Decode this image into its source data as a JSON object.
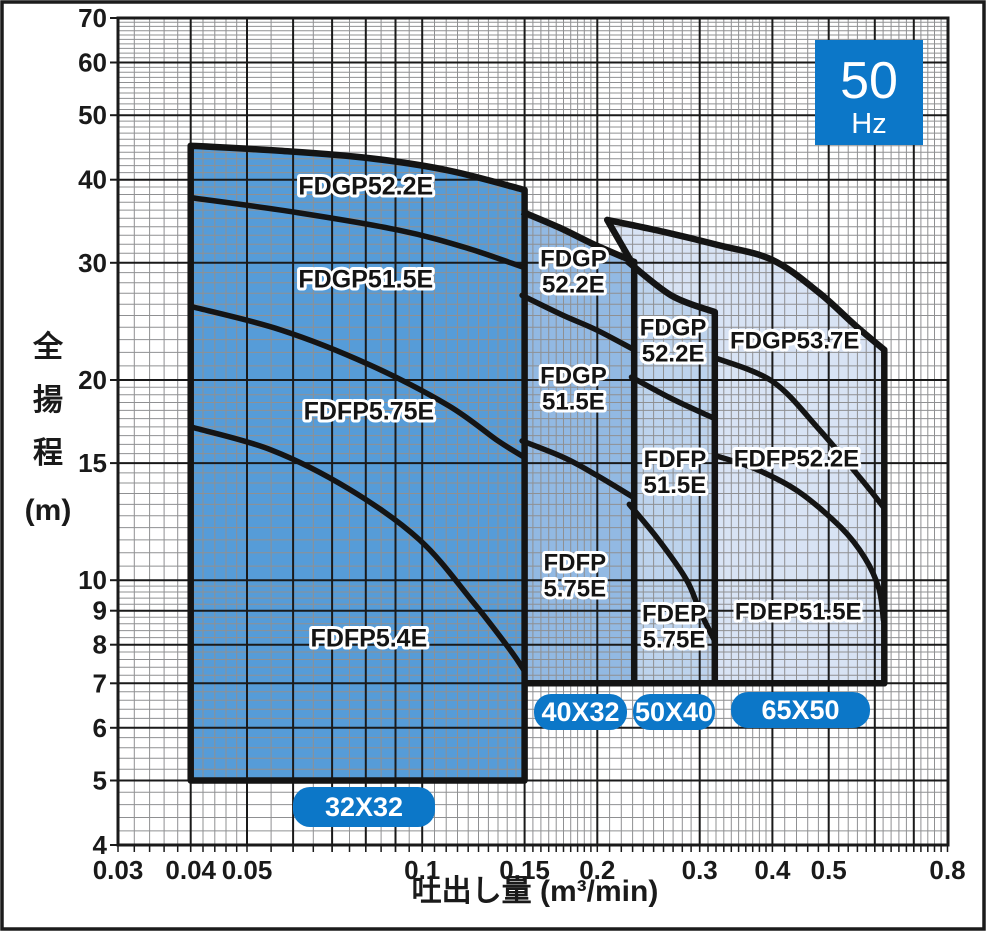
{
  "hz_badge": {
    "value": "50",
    "unit": "Hz",
    "bg": "#0C77C8",
    "text_color": "#ffffff"
  },
  "axes": {
    "x": {
      "label": "吐出し量 (m³/min)",
      "scale": "log",
      "range": [
        0.03,
        0.8
      ],
      "ticks": [
        {
          "v": 0.03,
          "label": "0.03"
        },
        {
          "v": 0.04,
          "label": "0.04"
        },
        {
          "v": 0.05,
          "label": "0.05"
        },
        {
          "v": 0.1,
          "label": "0.1"
        },
        {
          "v": 0.15,
          "label": "0.15"
        },
        {
          "v": 0.2,
          "label": "0.2"
        },
        {
          "v": 0.3,
          "label": "0.3"
        },
        {
          "v": 0.4,
          "label": "0.4"
        },
        {
          "v": 0.5,
          "label": "0.5"
        },
        {
          "v": 0.8,
          "label": "0.8"
        }
      ]
    },
    "y": {
      "label": "全揚程 (m)",
      "chars": [
        "全",
        "揚",
        "程"
      ],
      "unit": "(m)",
      "scale": "log",
      "range": [
        4,
        70
      ],
      "ticks": [
        {
          "v": 70,
          "label": "70"
        },
        {
          "v": 60,
          "label": "60"
        },
        {
          "v": 50,
          "label": "50"
        },
        {
          "v": 40,
          "label": "40"
        },
        {
          "v": 30,
          "label": "30"
        },
        {
          "v": 20,
          "label": "20"
        },
        {
          "v": 15,
          "label": "15"
        },
        {
          "v": 10,
          "label": "10"
        },
        {
          "v": 9,
          "label": "9"
        },
        {
          "v": 8,
          "label": "8"
        },
        {
          "v": 7,
          "label": "7"
        },
        {
          "v": 6,
          "label": "6"
        },
        {
          "v": 5,
          "label": "5"
        },
        {
          "v": 4,
          "label": "4"
        }
      ]
    }
  },
  "chart_data": {
    "type": "area",
    "title": "50Hz ポンプ選定図 (pump selection chart)",
    "xlabel": "吐出し量 (m³/min)",
    "ylabel": "全揚程 (m)",
    "xlim": [
      0.03,
      0.8
    ],
    "ylim": [
      4,
      70
    ],
    "x_scale": "log",
    "y_scale": "log",
    "grid": true,
    "regions": [
      {
        "bore": "65X50",
        "color": "#D8E3F4",
        "flow_range": [
          0.208,
          0.623
        ],
        "head_min": 7,
        "left_notch": [
          [
            0.2285,
            30.2
          ],
          [
            0.208,
            34.8
          ]
        ],
        "top_curve": [
          [
            0.208,
            34.8
          ],
          [
            0.26,
            33.4
          ],
          [
            0.323,
            31.9
          ],
          [
            0.4,
            30.3
          ],
          [
            0.48,
            27.1
          ],
          [
            0.554,
            24.2
          ],
          [
            0.623,
            22.2
          ]
        ],
        "bottom_from": 0.3185,
        "dividers": [
          [
            [
              0.3185,
              21.6
            ],
            [
              0.4,
              19.9
            ],
            [
              0.48,
              16.9
            ],
            [
              0.568,
              14.2
            ],
            [
              0.62,
              12.9
            ]
          ],
          [
            [
              0.3185,
              15.4
            ],
            [
              0.374,
              14.7
            ],
            [
              0.443,
              13.6
            ],
            [
              0.525,
              12.0
            ],
            [
              0.577,
              10.8
            ],
            [
              0.61,
              9.7
            ],
            [
              0.621,
              8.7
            ]
          ]
        ],
        "models": [
          {
            "lines": [
              "FDGP53.7E"
            ],
            "pos": [
              0.437,
              23.0
            ]
          },
          {
            "lines": [
              "FDFP52.2E"
            ],
            "pos": [
              0.44,
              15.3
            ]
          },
          {
            "lines": [
              "FDEP51.5E"
            ],
            "pos": [
              0.443,
              9.0
            ]
          }
        ]
      },
      {
        "bore": "50X40",
        "color": "#BDD3ED",
        "flow_range": [
          0.225,
          0.3185
        ],
        "head_min": 7,
        "left_notch": null,
        "top_curve": [
          [
            0.225,
            30.2
          ],
          [
            0.268,
            26.8
          ],
          [
            0.3185,
            25.3
          ]
        ],
        "bottom_from": 0.225,
        "dividers": [
          [
            [
              0.229,
              20.2
            ],
            [
              0.27,
              18.7
            ],
            [
              0.3185,
              17.5
            ]
          ],
          [
            [
              0.227,
              13.0
            ],
            [
              0.255,
              11.5
            ],
            [
              0.285,
              10.0
            ],
            [
              0.3,
              9.0
            ],
            [
              0.3185,
              8.1
            ]
          ]
        ],
        "models": [
          {
            "lines": [
              "FDGP",
              "52.2E"
            ],
            "pos": [
              0.27,
              23.0
            ]
          },
          {
            "lines": [
              "FDFP",
              "51.5E"
            ],
            "pos": [
              0.272,
              14.6
            ]
          },
          {
            "lines": [
              "FDEP",
              "5.75E"
            ],
            "pos": [
              0.271,
              8.55
            ]
          }
        ]
      },
      {
        "bore": "40X32",
        "color": "#92B9E3",
        "flow_range": [
          0.1485,
          0.2315
        ],
        "head_min": 7,
        "left_notch": null,
        "top_curve": [
          [
            0.1485,
            35.8
          ],
          [
            0.172,
            33.9
          ],
          [
            0.197,
            32.0
          ],
          [
            0.2315,
            30.1
          ]
        ],
        "bottom_from": 0.1485,
        "dividers": [
          [
            [
              0.1485,
              26.8
            ],
            [
              0.175,
              25.0
            ],
            [
              0.199,
              23.8
            ],
            [
              0.2315,
              22.2
            ]
          ],
          [
            [
              0.1485,
              16.2
            ],
            [
              0.175,
              15.3
            ],
            [
              0.199,
              14.4
            ],
            [
              0.2315,
              13.3
            ]
          ]
        ],
        "models": [
          {
            "lines": [
              "FDGP",
              "52.2E"
            ],
            "pos": [
              0.182,
              29.2
            ]
          },
          {
            "lines": [
              "FDGP",
              "51.5E"
            ],
            "pos": [
              0.182,
              19.5
            ]
          },
          {
            "lines": [
              "FDFP",
              "5.75E"
            ],
            "pos": [
              0.183,
              10.2
            ]
          }
        ]
      },
      {
        "bore": "32X32",
        "color": "#569CD8",
        "flow_range": [
          0.04,
          0.15
        ],
        "head_min": 5,
        "left_notch": null,
        "top_curve": [
          [
            0.04,
            45.0
          ],
          [
            0.057,
            44.2
          ],
          [
            0.081,
            43.1
          ],
          [
            0.111,
            41.3
          ],
          [
            0.15,
            38.6
          ]
        ],
        "bottom_from": 0.04,
        "dividers": [
          [
            [
              0.04,
              37.6
            ],
            [
              0.061,
              35.7
            ],
            [
              0.091,
              33.6
            ],
            [
              0.119,
              31.6
            ],
            [
              0.15,
              29.5
            ]
          ],
          [
            [
              0.04,
              25.8
            ],
            [
              0.057,
              23.8
            ],
            [
              0.081,
              21.1
            ],
            [
              0.111,
              18.3
            ],
            [
              0.135,
              16.2
            ],
            [
              0.15,
              15.3
            ]
          ],
          [
            [
              0.04,
              17.0
            ],
            [
              0.055,
              15.7
            ],
            [
              0.075,
              13.7
            ],
            [
              0.099,
              11.5
            ],
            [
              0.122,
              9.3
            ],
            [
              0.141,
              7.9
            ],
            [
              0.15,
              7.3
            ]
          ]
        ],
        "models": [
          {
            "lines": [
              "FDGP52.2E"
            ],
            "pos": [
              0.08,
              39.2
            ]
          },
          {
            "lines": [
              "FDGP51.5E"
            ],
            "pos": [
              0.08,
              28.4
            ]
          },
          {
            "lines": [
              "FDFP5.75E"
            ],
            "pos": [
              0.081,
              18.0
            ]
          },
          {
            "lines": [
              "FDFP5.4E"
            ],
            "pos": [
              0.081,
              8.2
            ]
          }
        ]
      }
    ],
    "badges": [
      {
        "label": "32X32",
        "x": 293,
        "y": 787,
        "w": 142,
        "h": 40
      },
      {
        "label": "40X32",
        "x": 534,
        "y": 694,
        "w": 93,
        "h": 36
      },
      {
        "label": "50X40",
        "x": 633,
        "y": 694,
        "w": 82,
        "h": 36
      },
      {
        "label": "65X50",
        "x": 731,
        "y": 692,
        "w": 139,
        "h": 36
      }
    ],
    "badge_color": "#0C77C8",
    "legend_position": "none"
  }
}
